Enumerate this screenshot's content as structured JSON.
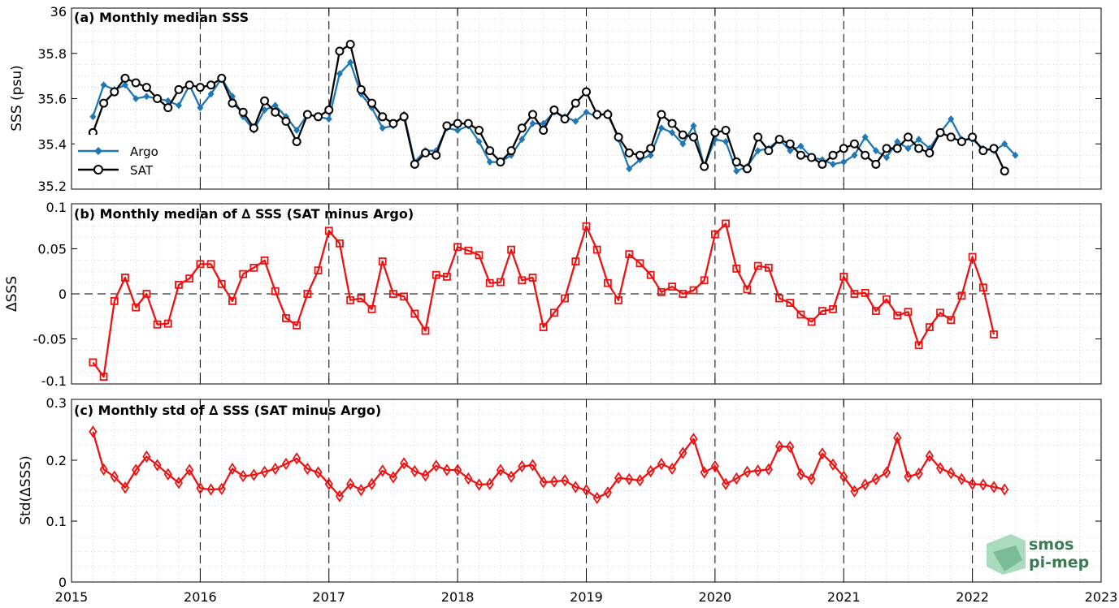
{
  "chart_data": [
    {
      "type": "line",
      "title": "(a) Monthly median SSS",
      "xlabel": "",
      "ylabel": "SSS (psu)",
      "xlim": [
        2015,
        2023
      ],
      "ylim": [
        35.2,
        36
      ],
      "yticks": [
        35.2,
        35.4,
        35.6,
        35.8,
        36
      ],
      "ytick_labels": [
        "35.2",
        "35.4",
        "35.6",
        "35.8",
        "36"
      ],
      "grid": true,
      "legend": "bottom-left",
      "year_lines": [
        2016,
        2017,
        2018,
        2019,
        2020,
        2021,
        2022
      ],
      "x_start": "2015-03",
      "series": [
        {
          "name": "Argo",
          "color": "#1f77b4",
          "marker": "diamond-filled",
          "values": [
            35.52,
            35.66,
            35.64,
            35.66,
            35.6,
            35.61,
            35.6,
            35.59,
            35.57,
            35.66,
            35.56,
            35.62,
            35.69,
            35.61,
            35.52,
            35.46,
            35.55,
            35.57,
            35.52,
            35.46,
            35.53,
            35.52,
            35.51,
            35.71,
            35.76,
            35.62,
            35.56,
            35.47,
            35.48,
            35.53,
            35.32,
            35.37,
            35.37,
            35.47,
            35.46,
            35.48,
            35.41,
            35.32,
            35.32,
            35.35,
            35.42,
            35.49,
            35.49,
            35.54,
            35.52,
            35.5,
            35.54,
            35.52,
            35.54,
            35.42,
            35.29,
            35.33,
            35.35,
            35.47,
            35.45,
            35.4,
            35.48,
            35.3,
            35.42,
            35.41,
            35.28,
            35.3,
            35.37,
            35.38,
            35.42,
            35.37,
            35.39,
            35.34,
            35.33,
            35.31,
            35.32,
            35.35,
            35.43,
            35.37,
            35.34,
            35.41,
            35.38,
            35.42,
            35.38,
            35.45,
            35.51,
            35.42,
            35.42,
            35.38,
            35.37,
            35.4,
            35.35
          ]
        },
        {
          "name": "SAT",
          "color": "#000000",
          "marker": "circle-open",
          "values": [
            35.45,
            35.58,
            35.63,
            35.69,
            35.67,
            35.65,
            35.6,
            35.56,
            35.64,
            35.66,
            35.65,
            35.66,
            35.69,
            35.58,
            35.54,
            35.47,
            35.59,
            35.54,
            35.5,
            35.41,
            35.53,
            35.52,
            35.55,
            35.81,
            35.84,
            35.64,
            35.58,
            35.52,
            35.49,
            35.52,
            35.31,
            35.36,
            35.35,
            35.48,
            35.49,
            35.49,
            35.46,
            35.37,
            35.32,
            35.37,
            35.47,
            35.53,
            35.46,
            35.55,
            35.51,
            35.58,
            35.63,
            35.53,
            35.53,
            35.43,
            35.36,
            35.35,
            35.38,
            35.53,
            35.49,
            35.44,
            35.43,
            35.3,
            35.45,
            35.46,
            35.32,
            35.29,
            35.43,
            35.37,
            35.42,
            35.4,
            35.35,
            35.34,
            35.31,
            35.35,
            35.38,
            35.4,
            35.35,
            35.31,
            35.38,
            35.38,
            35.43,
            35.38,
            35.36,
            35.45,
            35.43,
            35.41,
            35.43,
            35.37,
            35.38,
            35.28
          ]
        }
      ]
    },
    {
      "type": "line",
      "title": "(b) Monthly median of ∆ SSS (SAT minus Argo)",
      "xlabel": "",
      "ylabel": "ΔSSS",
      "xlim": [
        2015,
        2023
      ],
      "ylim": [
        -0.1,
        0.1
      ],
      "yticks": [
        -0.1,
        -0.05,
        0,
        0.05,
        0.1
      ],
      "ytick_labels": [
        "-0.1",
        "-0.05",
        "0",
        "0.05",
        "0.1"
      ],
      "grid": true,
      "zero_line": true,
      "year_lines": [
        2016,
        2017,
        2018,
        2019,
        2020,
        2021,
        2022
      ],
      "x_start": "2015-03",
      "series": [
        {
          "color": "#ee1111",
          "marker": "square-open",
          "values": [
            -0.076,
            -0.092,
            -0.008,
            0.018,
            -0.015,
            0.0,
            -0.034,
            -0.033,
            0.01,
            0.017,
            0.033,
            0.033,
            0.011,
            -0.008,
            0.022,
            0.029,
            0.037,
            0.003,
            -0.027,
            -0.035,
            0.0,
            0.026,
            0.07,
            0.056,
            -0.007,
            -0.005,
            -0.017,
            0.036,
            0.0,
            -0.003,
            -0.022,
            -0.041,
            0.021,
            0.019,
            0.052,
            0.048,
            0.043,
            0.012,
            0.013,
            0.049,
            0.015,
            0.018,
            -0.037,
            -0.021,
            -0.005,
            0.036,
            0.075,
            0.049,
            0.012,
            -0.007,
            0.044,
            0.034,
            0.021,
            0.002,
            0.008,
            0.0,
            0.004,
            0.015,
            0.066,
            0.078,
            0.028,
            0.005,
            0.031,
            0.029,
            -0.005,
            -0.01,
            -0.023,
            -0.031,
            -0.019,
            -0.017,
            0.019,
            0.0,
            0.001,
            -0.019,
            -0.006,
            -0.024,
            -0.02,
            -0.057,
            -0.037,
            -0.021,
            -0.029,
            -0.002,
            0.041,
            0.007,
            -0.045
          ]
        }
      ]
    },
    {
      "type": "line",
      "title": "(c) Monthly std of ∆ SSS (SAT minus Argo)",
      "xlabel": "",
      "ylabel": "Std(ΔSSS)",
      "xlim": [
        2015,
        2023
      ],
      "ylim": [
        0,
        0.3
      ],
      "yticks": [
        0,
        0.1,
        0.2,
        0.3
      ],
      "ytick_labels": [
        "0",
        "0.1",
        "0.2",
        "0.3"
      ],
      "xticks": [
        2015,
        2016,
        2017,
        2018,
        2019,
        2020,
        2021,
        2022,
        2023
      ],
      "xtick_labels": [
        "2015",
        "2016",
        "2017",
        "2018",
        "2019",
        "2020",
        "2021",
        "2022",
        "2023"
      ],
      "grid": true,
      "year_lines": [
        2016,
        2017,
        2018,
        2019,
        2020,
        2021,
        2022
      ],
      "x_start": "2015-03",
      "series": [
        {
          "color": "#ee1111",
          "marker": "diamond-open",
          "values": [
            0.247,
            0.185,
            0.173,
            0.155,
            0.184,
            0.206,
            0.192,
            0.177,
            0.163,
            0.184,
            0.154,
            0.152,
            0.153,
            0.186,
            0.174,
            0.176,
            0.181,
            0.186,
            0.194,
            0.203,
            0.186,
            0.18,
            0.161,
            0.141,
            0.161,
            0.151,
            0.161,
            0.183,
            0.172,
            0.195,
            0.182,
            0.175,
            0.191,
            0.184,
            0.184,
            0.17,
            0.16,
            0.161,
            0.184,
            0.173,
            0.19,
            0.192,
            0.164,
            0.165,
            0.167,
            0.156,
            0.151,
            0.138,
            0.147,
            0.171,
            0.169,
            0.167,
            0.182,
            0.194,
            0.186,
            0.212,
            0.235,
            0.18,
            0.19,
            0.161,
            0.17,
            0.181,
            0.183,
            0.185,
            0.223,
            0.222,
            0.177,
            0.169,
            0.211,
            0.193,
            0.173,
            0.149,
            0.16,
            0.169,
            0.18,
            0.237,
            0.173,
            0.178,
            0.207,
            0.187,
            0.179,
            0.169,
            0.161,
            0.16,
            0.156,
            0.152
          ]
        }
      ]
    }
  ],
  "logo": {
    "line1": "smos",
    "line2": "pi-mep",
    "color": "#3a7a55"
  }
}
